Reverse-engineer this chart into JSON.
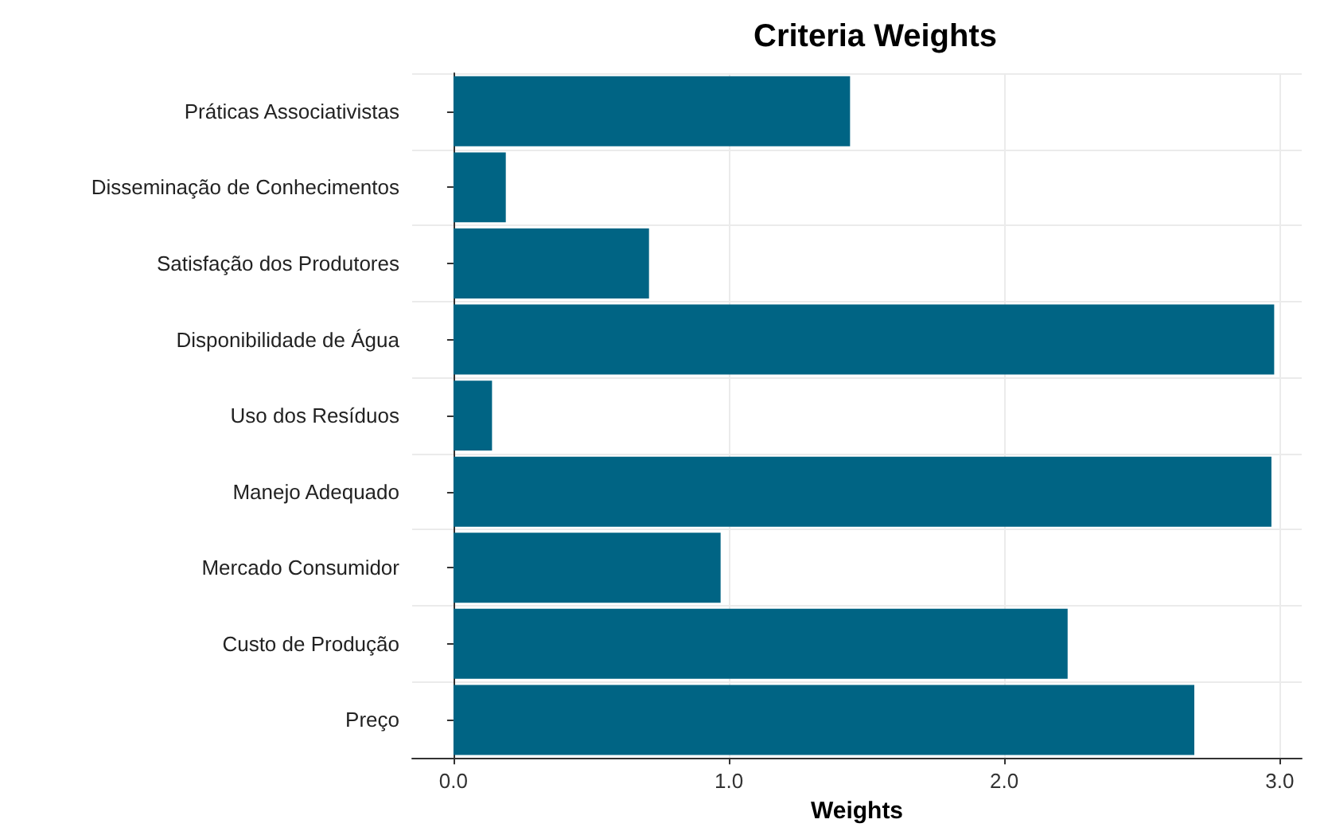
{
  "chart_data": {
    "type": "bar",
    "orientation": "horizontal",
    "title": "Criteria Weights",
    "xlabel": "Weights",
    "categories": [
      "Práticas Associativistas",
      "Disseminação de Conhecimentos",
      "Satisfação dos Produtores",
      "Disponibilidade de Água",
      "Uso dos Resíduos",
      "Manejo Adequado",
      "Mercado Consumidor",
      "Custo de Produção",
      "Preço"
    ],
    "values": [
      1.44,
      0.19,
      0.71,
      2.98,
      0.14,
      2.97,
      0.97,
      2.23,
      2.69
    ],
    "color": "#006484",
    "xlim": [
      -0.15,
      3.08
    ],
    "xticks": [
      {
        "value": 0,
        "label": "0.0"
      },
      {
        "value": 1,
        "label": "1.0"
      },
      {
        "value": 2,
        "label": "2.0"
      },
      {
        "value": 3,
        "label": "3.0"
      }
    ],
    "grid": true
  }
}
